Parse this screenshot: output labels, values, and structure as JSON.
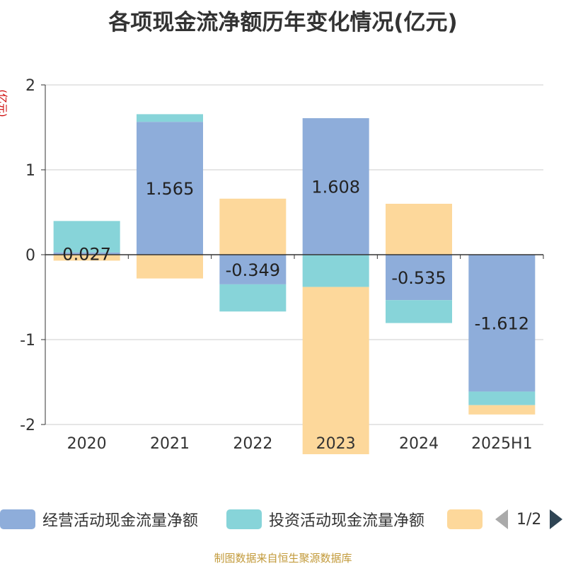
{
  "chart_data": {
    "type": "bar",
    "stacked": true,
    "title": "各项现金流净额历年变化情况(亿元)",
    "ylabel": "(亿元)",
    "categories": [
      "2020",
      "2021",
      "2022",
      "2023",
      "2024",
      "2025H1"
    ],
    "ylim": [
      -2,
      2
    ],
    "yticks": [
      2,
      1,
      0,
      -1,
      -2
    ],
    "series": [
      {
        "name": "经营活动现金流量净额",
        "color": "#8eadda",
        "values": [
          0.027,
          1.565,
          -0.349,
          1.608,
          -0.535,
          -1.612
        ],
        "labels": [
          "0.027",
          "1.565",
          "-0.349",
          "1.608",
          "-0.535",
          "-1.612"
        ]
      },
      {
        "name": "投资活动现金流量净额",
        "color": "#87d4d9",
        "values": [
          0.37,
          0.09,
          -0.32,
          -0.38,
          -0.27,
          -0.16
        ]
      },
      {
        "name": "",
        "color": "#fdd89b",
        "values": [
          -0.07,
          -0.28,
          0.66,
          -1.97,
          0.6,
          -0.11
        ]
      }
    ],
    "grid": true,
    "legend_position": "bottom"
  },
  "legend": {
    "page": "1/2"
  },
  "source": "制图数据来自恒生聚源数据库"
}
